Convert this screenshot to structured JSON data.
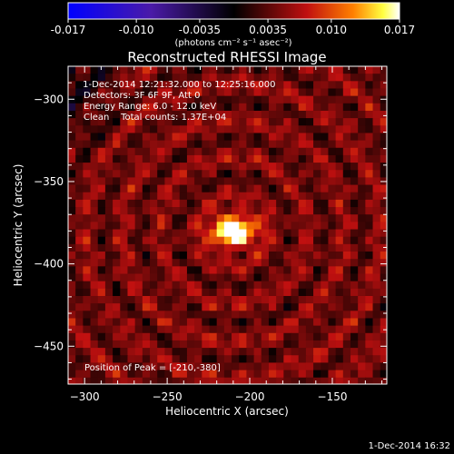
{
  "chart_data": {
    "type": "heatmap",
    "title": "Reconstructed RHESSI Image",
    "xlabel": "Heliocentric X (arcsec)",
    "ylabel": "Heliocentric Y (arcsec)",
    "xlim": [
      -310,
      -117
    ],
    "ylim": [
      -473,
      -280
    ],
    "x_ticks": [
      -300,
      -250,
      -200,
      -150
    ],
    "y_ticks": [
      -300,
      -350,
      -400,
      -450
    ],
    "colorbar": {
      "range": [
        -0.017,
        0.017
      ],
      "ticks": [
        "-0.017",
        "-0.010",
        "-0.0035",
        "0.0035",
        "0.010",
        "0.017"
      ],
      "tick_values": [
        -0.017,
        -0.01,
        -0.0035,
        0.0035,
        0.01,
        0.017
      ],
      "unit_label": "(photons cm⁻² s⁻¹ asec⁻²)",
      "colormap": "rhessi-blue-black-red-yellow-white"
    },
    "info_lines": [
      " 1-Dec-2014 12:21:32.000 to 12:25:16.000",
      "Detectors: 3F 6F 9F, Att 0",
      "Energy Range: 6.0 - 12.0 keV",
      "Clean    Total counts: 1.37E+04"
    ],
    "peak": {
      "x": -210,
      "y": -380
    },
    "peak_label": "Position of Peak = [-210,-380]",
    "background_level": 0.0045,
    "footer_date": "1-Dec-2014 16:32",
    "colors": {
      "background": "#000000",
      "text": "#ffffff"
    }
  }
}
